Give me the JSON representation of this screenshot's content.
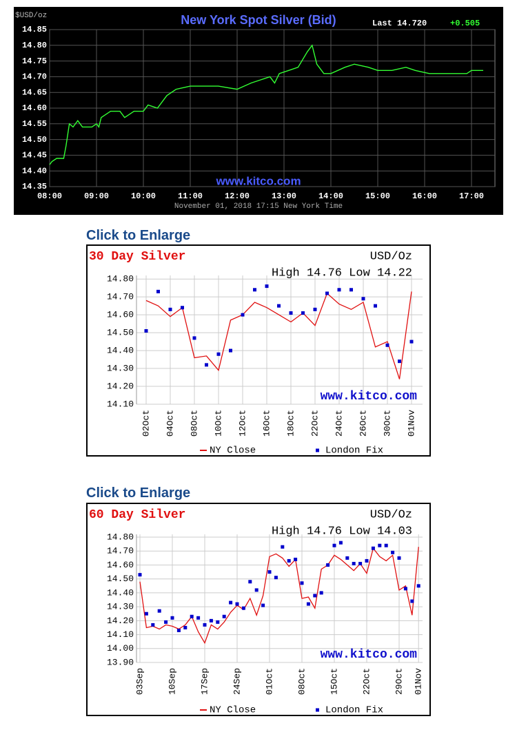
{
  "chart_data": [
    {
      "type": "line",
      "title": "New York Spot Silver (Bid)",
      "unit": "$USD/oz",
      "last": "Last 14.720",
      "change": "+0.505",
      "watermark": "www.kitco.com",
      "x_label": "November 01, 2018 17:15 New York Time",
      "x": [
        8.0,
        8.05,
        8.15,
        8.3,
        8.35,
        8.42,
        8.5,
        8.6,
        8.7,
        8.9,
        9.0,
        9.05,
        9.1,
        9.3,
        9.5,
        9.6,
        9.8,
        10.0,
        10.1,
        10.3,
        10.5,
        10.7,
        11.0,
        11.3,
        11.6,
        12.0,
        12.3,
        12.5,
        12.7,
        12.8,
        12.9,
        13.1,
        13.3,
        13.5,
        13.6,
        13.7,
        13.85,
        14.0,
        14.3,
        14.5,
        14.8,
        15.0,
        15.3,
        15.6,
        15.8,
        16.1,
        16.5,
        16.9,
        17.0,
        17.25
      ],
      "series": [
        {
          "color": "#33ff33",
          "values": [
            14.42,
            14.43,
            14.44,
            14.44,
            14.48,
            14.55,
            14.54,
            14.56,
            14.54,
            14.54,
            14.55,
            14.54,
            14.57,
            14.59,
            14.59,
            14.57,
            14.59,
            14.59,
            14.61,
            14.6,
            14.64,
            14.66,
            14.67,
            14.67,
            14.67,
            14.66,
            14.68,
            14.69,
            14.7,
            14.68,
            14.71,
            14.72,
            14.73,
            14.78,
            14.8,
            14.74,
            14.71,
            14.71,
            14.73,
            14.74,
            14.73,
            14.72,
            14.72,
            14.73,
            14.72,
            14.71,
            14.71,
            14.71,
            14.72,
            14.72
          ]
        }
      ],
      "xlim": [
        8,
        17.5
      ],
      "xticks": [
        {
          "value": 8,
          "label": "08:00"
        },
        {
          "value": 9,
          "label": "09:00"
        },
        {
          "value": 10,
          "label": "10:00"
        },
        {
          "value": 11,
          "label": "11:00"
        },
        {
          "value": 12,
          "label": "12:00"
        },
        {
          "value": 13,
          "label": "13:00"
        },
        {
          "value": 14,
          "label": "14:00"
        },
        {
          "value": 15,
          "label": "15:00"
        },
        {
          "value": 16,
          "label": "16:00"
        },
        {
          "value": 17,
          "label": "17:00"
        }
      ],
      "ylim": [
        14.35,
        14.85
      ],
      "yticks": [
        14.35,
        {
          "value": 14.4,
          "label": "14.40"
        },
        14.45,
        {
          "value": 14.5,
          "label": "14.50"
        },
        14.55,
        {
          "value": 14.6,
          "label": "14.60"
        },
        14.65,
        {
          "value": 14.7,
          "label": "14.70"
        },
        14.75,
        {
          "value": 14.8,
          "label": "14.80"
        },
        14.85
      ],
      "grid": true
    },
    {
      "type": "line",
      "caption": "Click to Enlarge",
      "title": "30 Day Silver",
      "unit": "USD/Oz",
      "summary": "High 14.76 Low 14.22",
      "watermark": "www.kitco.com",
      "categories": [
        "02Oct",
        null,
        "04Oct",
        null,
        "08Oct",
        null,
        "10Oct",
        null,
        "12Oct",
        null,
        "16Oct",
        null,
        "18Oct",
        null,
        "22Oct",
        null,
        "24Oct",
        null,
        "26Oct",
        null,
        "30Oct",
        null,
        "01Nov"
      ],
      "series": [
        {
          "name": "NY Close",
          "color": "#e01010",
          "style": "line",
          "values": [
            14.68,
            14.65,
            14.59,
            14.64,
            14.36,
            14.37,
            14.29,
            14.57,
            14.6,
            14.67,
            14.64,
            14.6,
            14.56,
            14.61,
            14.54,
            14.72,
            14.66,
            14.63,
            14.67,
            14.42,
            14.45,
            14.24,
            14.73
          ]
        },
        {
          "name": "London Fix",
          "color": "#0000cc",
          "style": "markers",
          "values": [
            14.51,
            14.73,
            14.63,
            14.64,
            14.47,
            14.32,
            14.38,
            14.4,
            14.6,
            14.74,
            14.76,
            14.65,
            14.61,
            14.61,
            14.63,
            14.72,
            14.74,
            14.74,
            14.69,
            14.65,
            14.43,
            14.34,
            14.45
          ]
        }
      ],
      "ylim": [
        14.1,
        14.82
      ],
      "yticks": [
        {
          "value": 14.1,
          "label": "14.10"
        },
        {
          "value": 14.2,
          "label": "14.20"
        },
        {
          "value": 14.3,
          "label": "14.30"
        },
        {
          "value": 14.4,
          "label": "14.40"
        },
        {
          "value": 14.5,
          "label": "14.50"
        },
        {
          "value": 14.6,
          "label": "14.60"
        },
        {
          "value": 14.7,
          "label": "14.70"
        },
        {
          "value": 14.8,
          "label": "14.80"
        }
      ],
      "grid": true
    },
    {
      "type": "line",
      "caption": "Click to Enlarge",
      "title": "60 Day Silver",
      "unit": "USD/Oz",
      "summary": "High 14.76 Low 14.03",
      "watermark": "www.kitco.com",
      "categories": [
        "03Sep",
        null,
        null,
        null,
        null,
        "10Sep",
        null,
        null,
        null,
        null,
        "17Sep",
        null,
        null,
        null,
        null,
        "24Sep",
        null,
        null,
        null,
        null,
        "01Oct",
        null,
        null,
        null,
        null,
        "08Oct",
        null,
        null,
        null,
        null,
        "15Oct",
        null,
        null,
        null,
        null,
        "22Oct",
        null,
        null,
        null,
        null,
        "29Oct",
        null,
        null,
        "01Nov"
      ],
      "series": [
        {
          "name": "NY Close",
          "color": "#e01010",
          "style": "line",
          "values": [
            14.48,
            14.15,
            14.16,
            14.14,
            14.17,
            14.16,
            14.14,
            14.17,
            14.23,
            14.12,
            14.04,
            14.17,
            14.14,
            14.19,
            14.26,
            14.31,
            14.28,
            14.36,
            14.24,
            14.38,
            14.66,
            14.68,
            14.65,
            14.59,
            14.64,
            14.36,
            14.37,
            14.29,
            14.57,
            14.6,
            14.67,
            14.64,
            14.6,
            14.56,
            14.61,
            14.54,
            14.72,
            14.66,
            14.63,
            14.67,
            14.42,
            14.45,
            14.24,
            14.73
          ]
        },
        {
          "name": "London Fix",
          "color": "#0000cc",
          "style": "markers",
          "values": [
            14.53,
            14.25,
            14.17,
            14.27,
            14.19,
            14.22,
            14.13,
            14.15,
            14.23,
            14.22,
            14.17,
            14.2,
            14.19,
            14.23,
            14.33,
            14.32,
            14.29,
            14.48,
            14.42,
            14.31,
            14.55,
            14.51,
            14.73,
            14.63,
            14.64,
            14.47,
            14.32,
            14.38,
            14.4,
            14.6,
            14.74,
            14.76,
            14.65,
            14.61,
            14.61,
            14.63,
            14.72,
            14.74,
            14.74,
            14.69,
            14.65,
            14.43,
            14.34,
            14.45
          ]
        }
      ],
      "ylim": [
        13.9,
        14.82
      ],
      "yticks": [
        {
          "value": 13.9,
          "label": "13.90"
        },
        {
          "value": 14.0,
          "label": "14.00"
        },
        {
          "value": 14.1,
          "label": "14.10"
        },
        {
          "value": 14.2,
          "label": "14.20"
        },
        {
          "value": 14.3,
          "label": "14.30"
        },
        {
          "value": 14.4,
          "label": "14.40"
        },
        {
          "value": 14.5,
          "label": "14.50"
        },
        {
          "value": 14.6,
          "label": "14.60"
        },
        {
          "value": 14.7,
          "label": "14.70"
        },
        {
          "value": 14.8,
          "label": "14.80"
        }
      ],
      "grid": true
    }
  ]
}
